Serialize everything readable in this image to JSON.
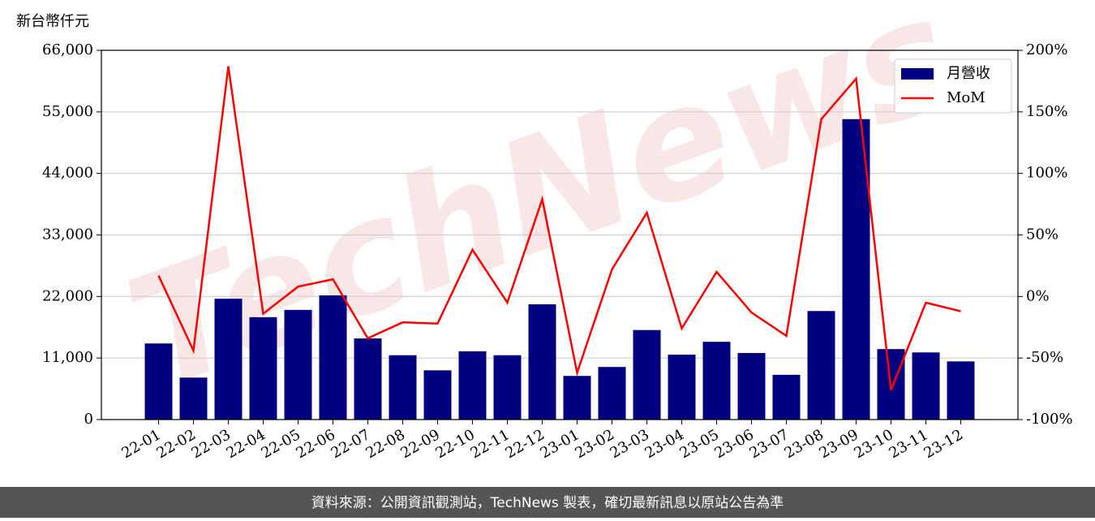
{
  "chart_data": {
    "type": "bar-line",
    "y_axis_label": "新台幣仟元",
    "watermark": "TechNews",
    "footer": "資料來源：公開資訊觀測站，TechNews 製表，確切最新訊息以原站公告為準",
    "categories": [
      "22-01",
      "22-02",
      "22-03",
      "22-04",
      "22-05",
      "22-06",
      "22-07",
      "22-08",
      "22-09",
      "22-10",
      "22-11",
      "22-12",
      "23-01",
      "23-02",
      "23-03",
      "23-04",
      "23-05",
      "23-06",
      "23-07",
      "23-08",
      "23-09",
      "23-10",
      "23-11",
      "23-12"
    ],
    "series": [
      {
        "name": "月營收",
        "color": "#000080",
        "type": "bar",
        "values": [
          13600,
          7500,
          21600,
          18300,
          19600,
          22200,
          14500,
          11500,
          8800,
          12200,
          11500,
          20600,
          7800,
          9400,
          16000,
          11600,
          13900,
          11900,
          8000,
          19400,
          53700,
          12600,
          12000,
          10400
        ]
      },
      {
        "name": "MoM",
        "color": "#ff0000",
        "type": "line",
        "axis": "y2",
        "values": [
          17,
          -44,
          187,
          -14,
          8,
          14,
          -34,
          -21,
          -22,
          38,
          -5,
          79,
          -62,
          22,
          68,
          -26,
          20,
          -13,
          -32,
          144,
          177,
          -76,
          -5,
          -12
        ]
      }
    ],
    "ylim": [
      0,
      66000
    ],
    "yticks": [
      0,
      {
        "value": 11000,
        "label": "11,000"
      },
      {
        "value": 22000,
        "label": "22,000"
      },
      {
        "value": 33000,
        "label": "33,000"
      },
      {
        "value": 44000,
        "label": "44,000"
      },
      {
        "value": 55000,
        "label": "55,000"
      },
      {
        "value": 66000,
        "label": "66,000"
      }
    ],
    "y2lim": [
      -100,
      200
    ],
    "y2ticks": [
      {
        "value": -100,
        "label": "-100%"
      },
      {
        "value": -50,
        "label": "-50%"
      },
      {
        "value": 0,
        "label": "0%"
      },
      {
        "value": 50,
        "label": "50%"
      },
      {
        "value": 100,
        "label": "100%"
      },
      {
        "value": 150,
        "label": "150%"
      },
      {
        "value": 200,
        "label": "200%"
      }
    ],
    "grid": true,
    "legend": "upper right"
  }
}
